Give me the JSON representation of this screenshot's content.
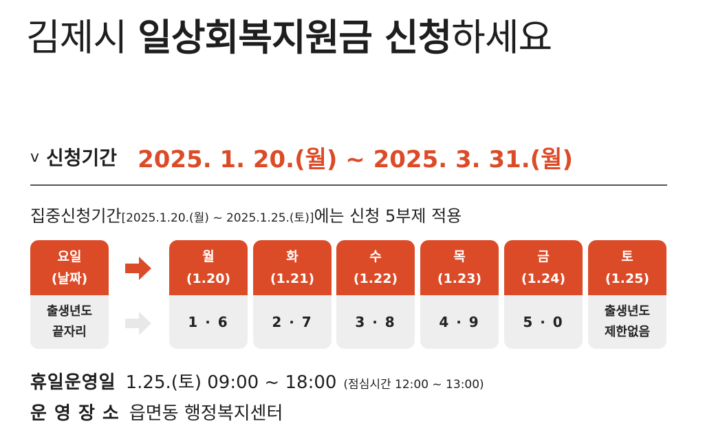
{
  "title": {
    "part1": "김제시 ",
    "part2": "일상회복지원금 신청",
    "part3": "하세요"
  },
  "period": {
    "chevron": "v",
    "label": "신청기간",
    "dates": "2025. 1. 20.(월) ~ 2025. 3. 31.(월)"
  },
  "focus": {
    "prefix": "집중신청기간",
    "range": "[2025.1.20.(월) ~ 2025.1.25.(토)]",
    "suffix": "에는 신청 5부제 적용"
  },
  "schedule": {
    "header": {
      "line1": "요일",
      "line2": "(날짜)",
      "body1": "출생년도",
      "body2": "끝자리"
    },
    "days": [
      {
        "day": "월",
        "date": "(1.20)",
        "digits": "1 · 6"
      },
      {
        "day": "화",
        "date": "(1.21)",
        "digits": "2 · 7"
      },
      {
        "day": "수",
        "date": "(1.22)",
        "digits": "3 · 8"
      },
      {
        "day": "목",
        "date": "(1.23)",
        "digits": "4 · 9"
      },
      {
        "day": "금",
        "date": "(1.24)",
        "digits": "5 · 0"
      },
      {
        "day": "토",
        "date": "(1.25)",
        "body1": "출생년도",
        "body2": "제한없음"
      }
    ]
  },
  "holiday": {
    "label": "휴일운영일",
    "value": "1.25.(토) 09:00 ~ 18:00",
    "note": "(점심시간 12:00 ~ 13:00)"
  },
  "location": {
    "label": "운 영 장 소",
    "value": "읍면동 행정복지센터"
  },
  "colors": {
    "accent": "#dc4b28",
    "cell_bg": "#eeeeee",
    "arrow_light": "#e8e8e8"
  }
}
